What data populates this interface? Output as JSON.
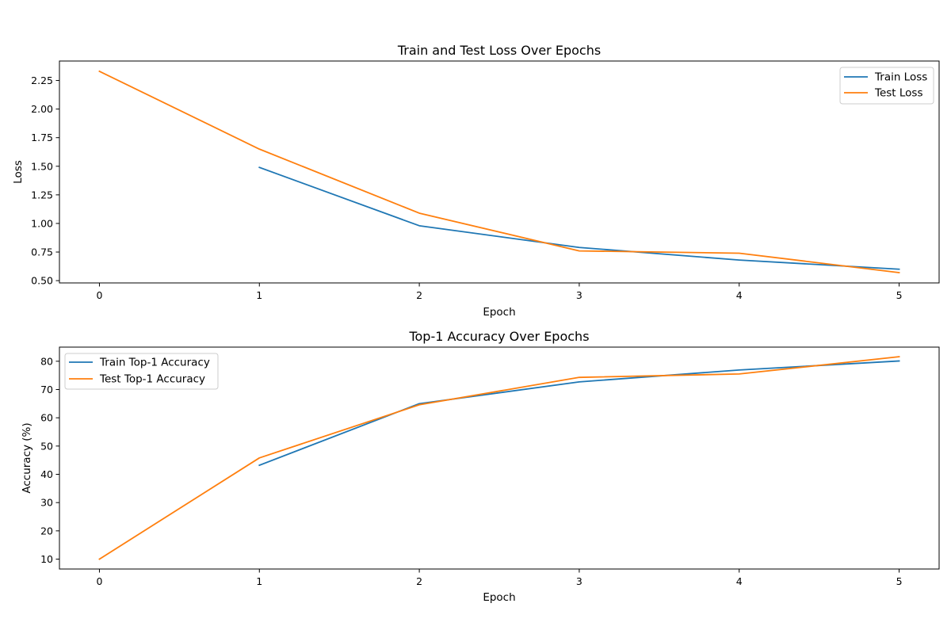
{
  "chart_data": [
    {
      "type": "line",
      "title": "Train and Test Loss Over Epochs",
      "xlabel": "Epoch",
      "ylabel": "Loss",
      "xlim": [
        -0.25,
        5.25
      ],
      "ylim": [
        0.48,
        2.42
      ],
      "xticks": [
        0,
        1,
        2,
        3,
        4,
        5
      ],
      "xtick_labels": [
        "0",
        "1",
        "2",
        "3",
        "4",
        "5"
      ],
      "yticks": [
        0.5,
        0.75,
        1.0,
        1.25,
        1.5,
        1.75,
        2.0,
        2.25
      ],
      "ytick_labels": [
        "0.50",
        "0.75",
        "1.00",
        "1.25",
        "1.50",
        "1.75",
        "2.00",
        "2.25"
      ],
      "grid": false,
      "legend_position": "top-right",
      "series": [
        {
          "name": "Train Loss",
          "color": "#1f77b4",
          "x": [
            1,
            2,
            3,
            4,
            5
          ],
          "values": [
            1.49,
            0.98,
            0.79,
            0.68,
            0.6
          ]
        },
        {
          "name": "Test Loss",
          "color": "#ff7f0e",
          "x": [
            0,
            1,
            2,
            3,
            4,
            5
          ],
          "values": [
            2.33,
            1.65,
            1.09,
            0.76,
            0.74,
            0.57
          ]
        }
      ]
    },
    {
      "type": "line",
      "title": "Top-1 Accuracy Over Epochs",
      "xlabel": "Epoch",
      "ylabel": "Accuracy (%)",
      "xlim": [
        -0.25,
        5.25
      ],
      "ylim": [
        6.5,
        85.0
      ],
      "xticks": [
        0,
        1,
        2,
        3,
        4,
        5
      ],
      "xtick_labels": [
        "0",
        "1",
        "2",
        "3",
        "4",
        "5"
      ],
      "yticks": [
        10,
        20,
        30,
        40,
        50,
        60,
        70,
        80
      ],
      "ytick_labels": [
        "10",
        "20",
        "30",
        "40",
        "50",
        "60",
        "70",
        "80"
      ],
      "grid": false,
      "legend_position": "top-left",
      "series": [
        {
          "name": "Train Top-1 Accuracy",
          "color": "#1f77b4",
          "x": [
            1,
            2,
            3,
            4,
            5
          ],
          "values": [
            43.2,
            65.0,
            72.7,
            76.9,
            80.1
          ]
        },
        {
          "name": "Test Top-1 Accuracy",
          "color": "#ff7f0e",
          "x": [
            0,
            1,
            2,
            3,
            4,
            5
          ],
          "values": [
            10.0,
            45.8,
            64.6,
            74.3,
            75.5,
            81.6
          ]
        }
      ]
    }
  ]
}
